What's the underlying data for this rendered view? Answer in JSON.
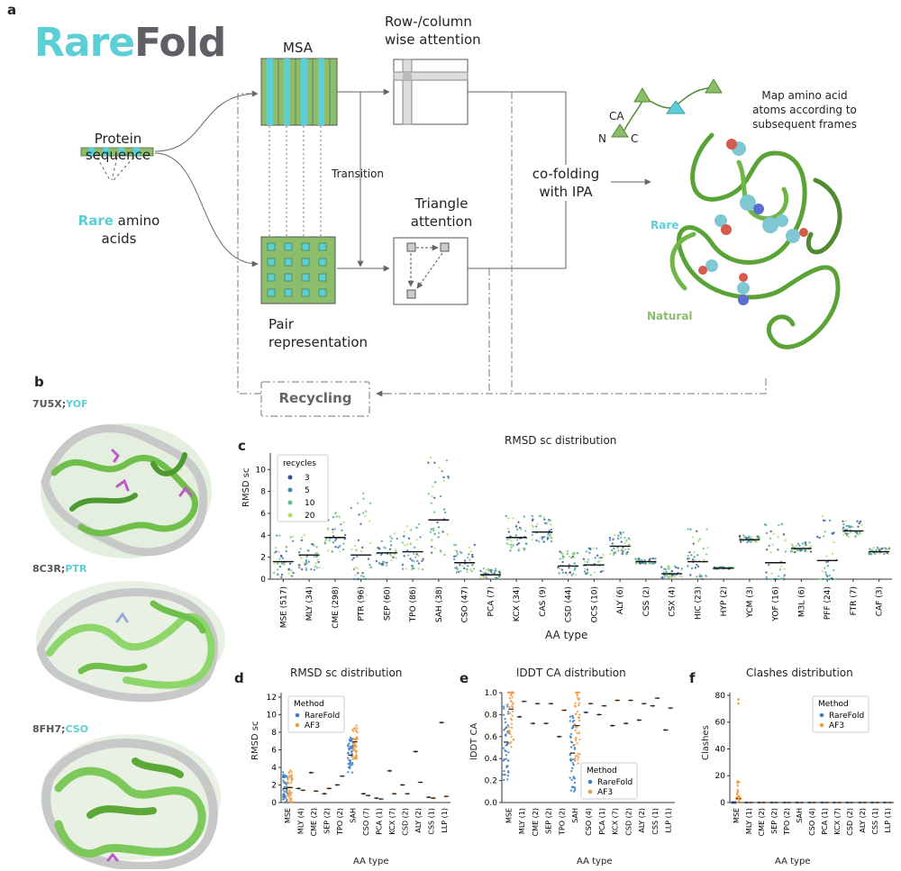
{
  "panel_a": {
    "letter": "a",
    "logo": {
      "part1": "Rare",
      "part2": "Fold",
      "color1": "#5ccfd6",
      "color2": "#5f6066"
    },
    "protein_sequence": [
      "Protein",
      "sequence"
    ],
    "rare_amino_acids": {
      "rare": "Rare",
      "rest": " amino",
      "line2": "acids"
    },
    "msa": "MSA",
    "row_column": [
      "Row-/column",
      "wise attention"
    ],
    "transition": "Transition",
    "triangle": [
      "Triangle",
      "attention"
    ],
    "pair": [
      "Pair",
      "representation"
    ],
    "cofolding": [
      "co-folding",
      "with IPA"
    ],
    "recycling": "Recycling",
    "map_text": [
      "Map amino acid",
      "atoms according to",
      "subsequent frames"
    ],
    "ca": "CA",
    "n": "N",
    "c": "C",
    "rare_label": "Rare",
    "natural_label": "Natural",
    "colors": {
      "green": "#8cbd6a",
      "green_dark": "#4f8b2e",
      "cyan": "#5ccfd6",
      "cyan_label": "#5ccfd6",
      "natural": "#8cbd6a"
    }
  },
  "panel_b": {
    "letter": "b",
    "labels": [
      {
        "id": "7U5X;",
        "res": "YOF"
      },
      {
        "id": "8C3R;",
        "res": "PTR"
      },
      {
        "id": "8FH7;",
        "res": "CSO"
      }
    ]
  },
  "panel_c": {
    "letter": "c"
  },
  "panel_d": {
    "letter": "d"
  },
  "panel_e": {
    "letter": "e"
  },
  "panel_f": {
    "letter": "f"
  },
  "chart_data": [
    {
      "type": "scatter",
      "panel": "c",
      "title": "RMSD sc distribution",
      "xlabel": "AA type",
      "ylabel": "RMSD sc",
      "ylim": [
        0,
        11.5
      ],
      "yticks": [
        0,
        2,
        4,
        6,
        8,
        10
      ],
      "legend": {
        "title": "recycles",
        "placement": "top-left",
        "entries": [
          "3",
          "5",
          "10",
          "20"
        ],
        "colors": [
          "#3b4a9a",
          "#3f8fa8",
          "#5fbf8a",
          "#b7db6a"
        ]
      },
      "categories": [
        "MSE (517)",
        "MLY (34)",
        "CME (298)",
        "PTR (96)",
        "SEP (60)",
        "TPO (86)",
        "SAH (38)",
        "CSO (47)",
        "PCA (7)",
        "KCX (34)",
        "CAS (9)",
        "CSD (44)",
        "OCS (10)",
        "ALY (6)",
        "CSS (2)",
        "CSX (4)",
        "HIC (23)",
        "HYP (2)",
        "YCM (3)",
        "YOF (16)",
        "M3L (6)",
        "PFF (24)",
        "FTR (7)",
        "CAF (3)"
      ],
      "medians": [
        1.6,
        2.2,
        3.8,
        2.2,
        2.4,
        2.5,
        5.4,
        1.5,
        0.4,
        3.8,
        4.3,
        1.2,
        1.3,
        3.0,
        1.6,
        0.5,
        1.6,
        1.0,
        3.6,
        1.5,
        2.8,
        1.7,
        4.4,
        2.5
      ],
      "spread_max": [
        4.2,
        4.5,
        6.2,
        8.3,
        4.3,
        5.2,
        11.2,
        3.2,
        1.0,
        5.9,
        5.8,
        2.6,
        2.9,
        4.3,
        1.9,
        1.2,
        4.6,
        1.1,
        4.0,
        5.5,
        3.4,
        5.8,
        5.3,
        2.9
      ]
    },
    {
      "type": "scatter",
      "panel": "d",
      "title": "RMSD sc distribution",
      "xlabel": "AA type",
      "ylabel": "RMSD sc",
      "ylim": [
        0,
        12.5
      ],
      "yticks": [
        0,
        2,
        4,
        6,
        8,
        10,
        12
      ],
      "legend": {
        "title": "Method",
        "placement": "top-left",
        "entries": [
          "RareFold",
          "AF3"
        ],
        "colors": [
          "#3f7fc0",
          "#f29a42"
        ]
      },
      "categories": [
        "MSE",
        "MLY (4)",
        "CME (2)",
        "SEP (2)",
        "TPO (2)",
        "SAH",
        "CSO (7)",
        "PCA (1)",
        "KCX (7)",
        "CSD (2)",
        "ALY (2)",
        "CSS (1)",
        "LLP (1)"
      ],
      "series": [
        {
          "name": "RareFold",
          "values": [
            1.6,
            1.6,
            3.4,
            1.0,
            2.0,
            5.4,
            1.0,
            0.5,
            3.6,
            2.0,
            5.8,
            0.6,
            9.1
          ]
        },
        {
          "name": "AF3",
          "values": [
            1.7,
            1.4,
            1.3,
            1.6,
            3.0,
            6.9,
            0.8,
            0.4,
            1.0,
            1.0,
            2.3,
            0.5,
            0.7
          ]
        }
      ]
    },
    {
      "type": "scatter",
      "panel": "e",
      "title": "lDDT CA distribution",
      "xlabel": "AA type",
      "ylabel": "lDDT CA",
      "ylim": [
        0,
        1.0
      ],
      "yticks": [
        0.0,
        0.2,
        0.4,
        0.6,
        0.8,
        1.0
      ],
      "legend": {
        "title": "Method",
        "placement": "bottom-right",
        "entries": [
          "RareFold",
          "AF3"
        ],
        "colors": [
          "#3f7fc0",
          "#f29a42"
        ]
      },
      "categories": [
        "MSE",
        "MLY (1)",
        "CME (2)",
        "SEP (2)",
        "TPO (2)",
        "SAH",
        "CSO (4)",
        "PCA (1)",
        "KCX (7)",
        "CSD (2)",
        "ALY (2)",
        "CSS (1)",
        "LLP (1)"
      ],
      "series": [
        {
          "name": "RareFold",
          "values": [
            0.55,
            0.78,
            0.72,
            0.72,
            0.6,
            0.45,
            0.82,
            0.8,
            0.7,
            0.72,
            0.75,
            0.88,
            0.66
          ]
        },
        {
          "name": "AF3",
          "values": [
            0.85,
            0.92,
            0.9,
            0.9,
            0.84,
            0.7,
            0.9,
            0.88,
            0.93,
            0.93,
            0.9,
            0.95,
            0.86
          ]
        }
      ]
    },
    {
      "type": "scatter",
      "panel": "f",
      "title": "Clashes distribution",
      "xlabel": "AA type",
      "ylabel": "Clashes",
      "ylim": [
        0,
        82
      ],
      "yticks": [
        0,
        20,
        40,
        60,
        80
      ],
      "legend": {
        "title": "Method",
        "placement": "top-right",
        "entries": [
          "RareFold",
          "AF3"
        ],
        "colors": [
          "#3f7fc0",
          "#f29a42"
        ]
      },
      "categories": [
        "MSE",
        "MLY (1)",
        "CME (2)",
        "SEP (2)",
        "TPO (2)",
        "SAH",
        "CSO (4)",
        "PCA (1)",
        "KCX (7)",
        "CSD (2)",
        "ALY (2)",
        "CSS (1)",
        "LLP (1)"
      ],
      "series": [
        {
          "name": "RareFold",
          "values": [
            0,
            0,
            0,
            0,
            0,
            0,
            0,
            0,
            0,
            0,
            0,
            0,
            0
          ]
        },
        {
          "name": "AF3",
          "values": [
            3,
            0,
            0,
            0,
            0,
            0,
            0,
            0,
            0,
            0,
            0,
            0,
            0
          ]
        }
      ],
      "max_value": 77
    }
  ]
}
